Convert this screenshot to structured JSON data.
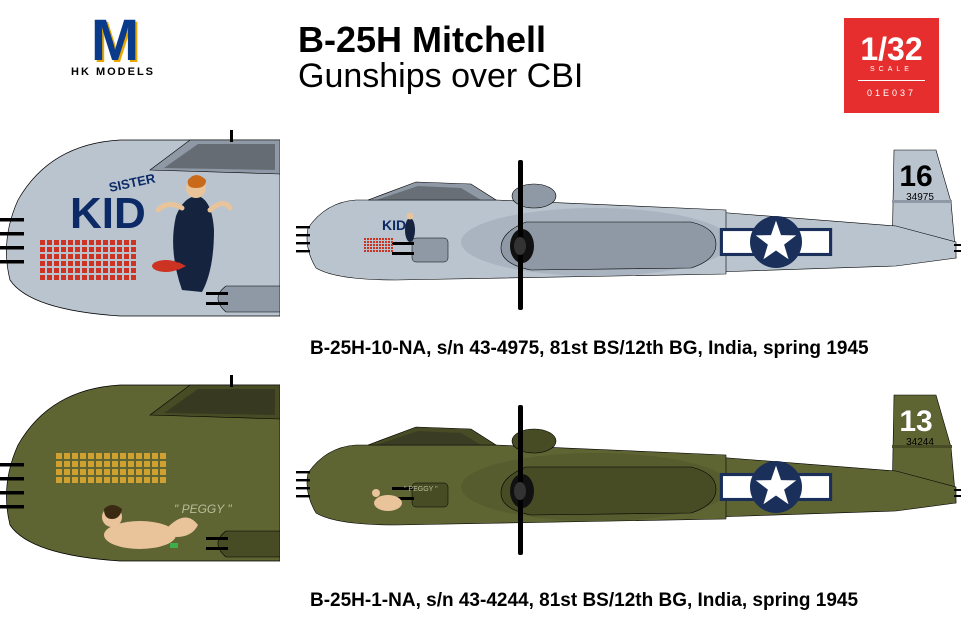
{
  "logo": {
    "text": "M",
    "sub": "HK MODELS"
  },
  "title": {
    "line1": "B-25H  Mitchell",
    "line2": "Gunships over CBI"
  },
  "scale": {
    "fraction": "1/32",
    "label": "SCALE",
    "code": "01E037"
  },
  "colors": {
    "bg": "#ffffff",
    "badge": "#e62e2e",
    "natural_metal": "#b9c4cf",
    "nm_dark": "#8e99a5",
    "olive_drab": "#5f6433",
    "od_dark": "#474c24",
    "grey_underside": "#8b949c",
    "black": "#000000",
    "white": "#ffffff",
    "roundel_blue": "#1a2f5a",
    "noseart_blue": "#0b2a66",
    "noseart_red": "#cc2222",
    "skin": "#e9c39a",
    "bomb_red": "#cc3322",
    "bomb_yellow": "#d0a030"
  },
  "aircraft": [
    {
      "caption": "B-25H-10-NA, s/n 43-4975, 81st BS/12th BG, India, spring 1945",
      "fuselage_color": "#b9c4cf",
      "panel_color": "#8e99a5",
      "tail_number": "16",
      "tail_number_color": "#000000",
      "serial": "34975",
      "serial_color": "#000000",
      "roundel_outline": "#1a2f5a",
      "nose_art": {
        "main": "KID",
        "sub": "SISTER",
        "text_color": "#0b2a66",
        "figure_dress": "#15233f",
        "skin": "#e9c39a"
      },
      "mission_marks": {
        "rows": 6,
        "cols": 14,
        "color": "#cc3322"
      }
    },
    {
      "caption": "B-25H-1-NA, s/n 43-4244, 81st BS/12th BG, India, spring 1945",
      "fuselage_color": "#5f6433",
      "panel_color": "#474c24",
      "tail_number": "13",
      "tail_number_color": "#ffffff",
      "serial": "34244",
      "serial_color": "#000000",
      "roundel_outline": "#1a2f5a",
      "nose_art": {
        "main": "\" PEGGY \"",
        "text_color": "#b9bd9a",
        "skin": "#e9c39a"
      },
      "mission_marks": {
        "rows": 4,
        "cols": 14,
        "color": "#d0a030"
      }
    }
  ]
}
